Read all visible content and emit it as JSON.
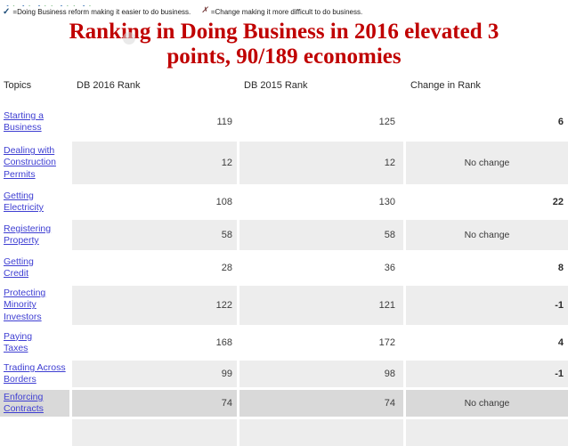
{
  "decoration": {
    "symbol_row": [
      "✓",
      "+",
      "✓",
      "+",
      "✓",
      "+",
      "+",
      "✓",
      "+",
      "+",
      "✓",
      "+"
    ]
  },
  "legend": {
    "check_symbol": "✓",
    "check_text": "=Doing Business reform making it easier to do business.",
    "x_symbol": "✗",
    "x_text": "=Change making it more difficult to do business."
  },
  "title": {
    "line1": "Ranking in Doing Business in 2016 elevated 3",
    "line2": "points, 90/189 economies"
  },
  "table": {
    "columns": [
      "Topics",
      "DB 2016 Rank",
      "DB 2015 Rank",
      "Change in Rank"
    ],
    "rows": [
      {
        "topic": "Starting a\nBusiness",
        "db2016": "119",
        "db2015": "125",
        "change": "6",
        "change_type": "number",
        "shade": "white"
      },
      {
        "topic": "Dealing with\nConstruction\nPermits",
        "db2016": "12",
        "db2015": "12",
        "change": "No change",
        "change_type": "text",
        "shade": "stripe"
      },
      {
        "topic": "Getting\nElectricity",
        "db2016": "108",
        "db2015": "130",
        "change": "22",
        "change_type": "number",
        "shade": "white"
      },
      {
        "topic": "Registering\nProperty",
        "db2016": "58",
        "db2015": "58",
        "change": "No change",
        "change_type": "text",
        "shade": "stripe"
      },
      {
        "topic": "Getting\nCredit",
        "db2016": "28",
        "db2015": "36",
        "change": "8",
        "change_type": "number",
        "shade": "white"
      },
      {
        "topic": "Protecting\nMinority\nInvestors",
        "db2016": "122",
        "db2015": "121",
        "change": "-1",
        "change_type": "number",
        "shade": "stripe"
      },
      {
        "topic": "Paying\nTaxes",
        "db2016": "168",
        "db2015": "172",
        "change": "4",
        "change_type": "number",
        "shade": "white"
      },
      {
        "topic": "Trading Across\nBorders",
        "db2016": "99",
        "db2015": "98",
        "change": "-1",
        "change_type": "number",
        "shade": "stripe"
      },
      {
        "topic": "Enforcing\nContracts",
        "db2016": "74",
        "db2015": "74",
        "change": "No change",
        "change_type": "text",
        "shade": "highlight"
      },
      {
        "topic": "",
        "db2016": "",
        "db2015": "",
        "change": "",
        "change_type": "text",
        "shade": "stripe"
      }
    ]
  },
  "colors": {
    "title_red": "#c00000",
    "link_blue": "#3e3ed2",
    "stripe_gray": "#ededed",
    "highlight_gray": "#d9d9d9",
    "check_blue": "#4a7ebb",
    "plus_green": "#3f9e49",
    "legend_check_navy": "#1f4e79"
  }
}
